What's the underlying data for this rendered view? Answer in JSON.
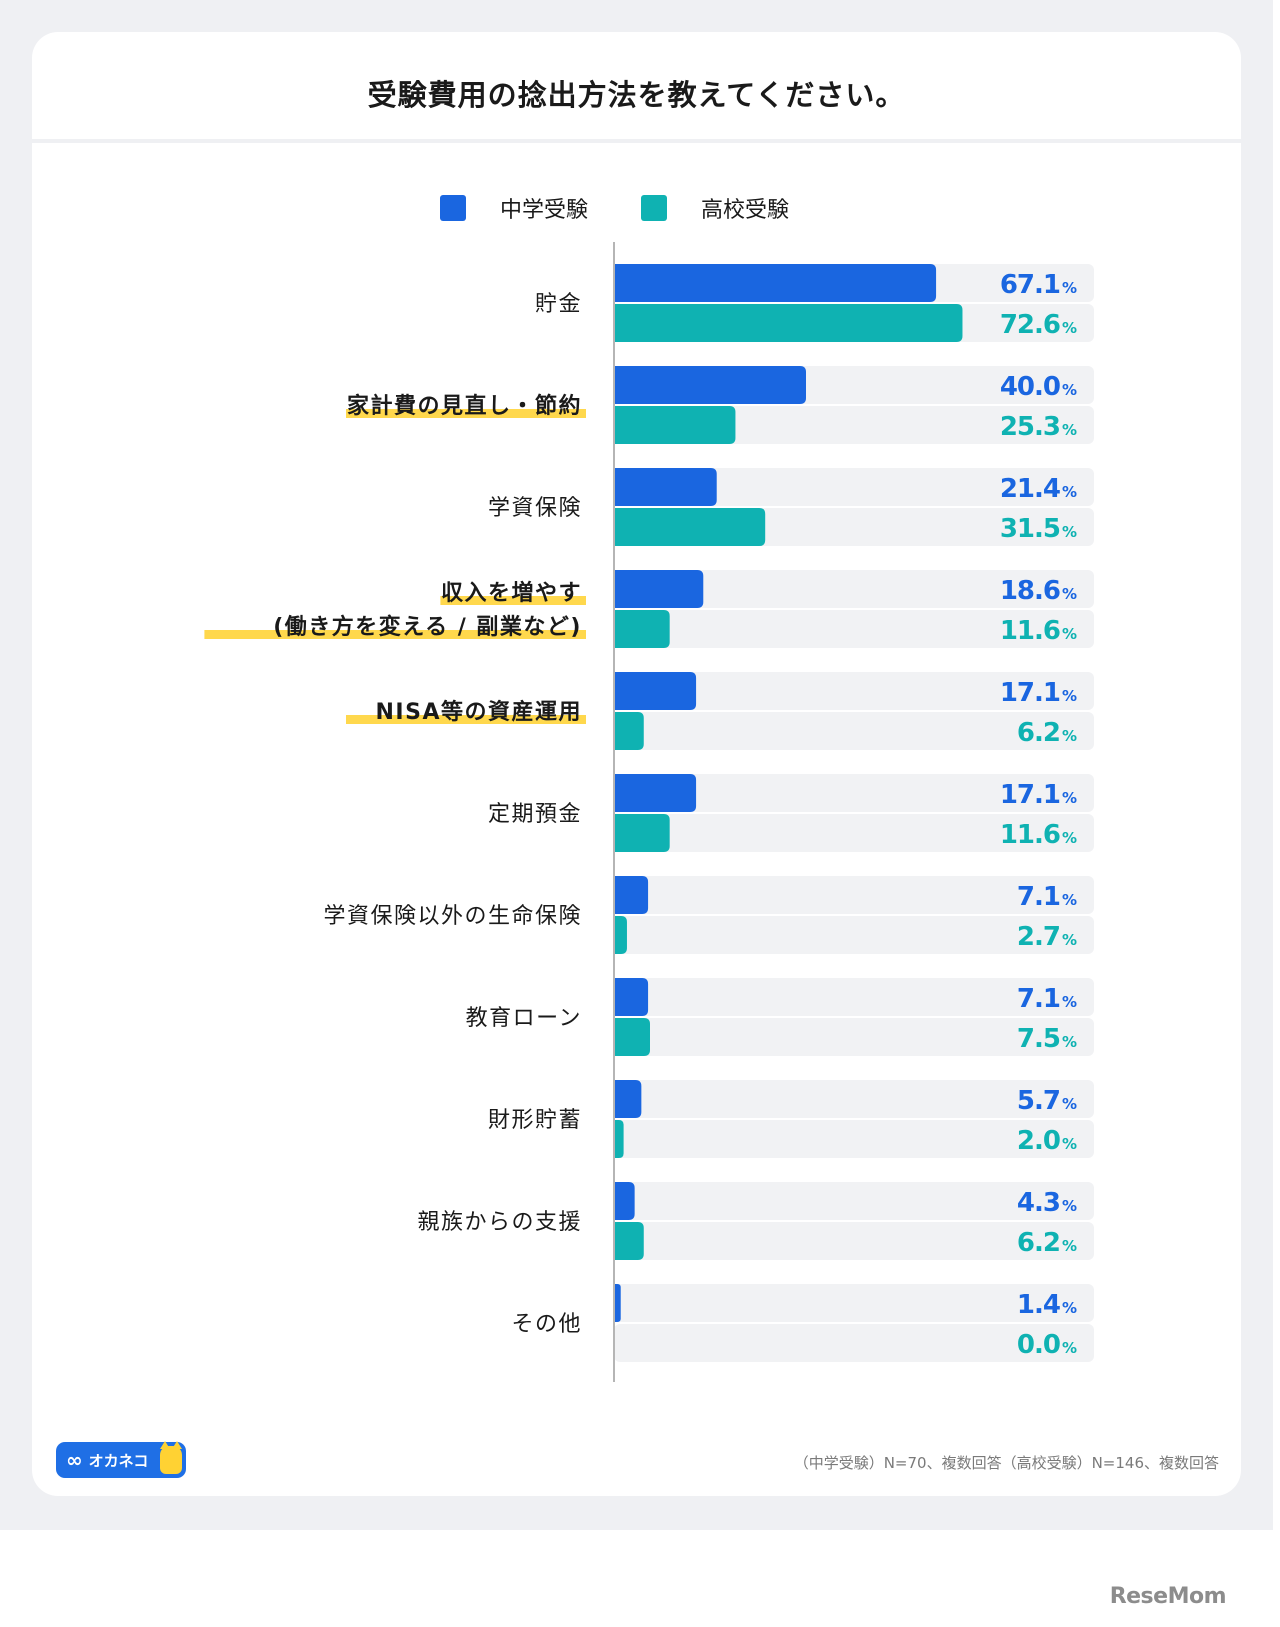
{
  "title": "受験費用の捻出方法を教えてください。",
  "chart_data": {
    "type": "bar",
    "orientation": "horizontal",
    "categories": [
      "貯金",
      "家計費の見直し・節約",
      "学資保険",
      "収入を増やす\n(働き方を変える / 副業など)",
      "NISA等の資産運用",
      "定期預金",
      "学資保険以外の生命保険",
      "教育ローン",
      "財形貯蓄",
      "親族からの支援",
      "その他"
    ],
    "highlighted": [
      false,
      true,
      false,
      true,
      true,
      false,
      false,
      false,
      false,
      false,
      false
    ],
    "series": [
      {
        "name": "中学受験",
        "color": "#1a66e0",
        "values": [
          67.1,
          40.0,
          21.4,
          18.6,
          17.1,
          17.1,
          7.1,
          7.1,
          5.7,
          4.3,
          1.4
        ]
      },
      {
        "name": "高校受験",
        "color": "#0fb2b2",
        "values": [
          72.6,
          25.3,
          31.5,
          11.6,
          6.2,
          11.6,
          2.7,
          7.5,
          2.0,
          6.2,
          0.0
        ]
      }
    ],
    "unit": "%",
    "xlim": [
      0,
      100
    ],
    "legend_position": "top",
    "grid": false
  },
  "colors": {
    "highlight": "#ffd84d",
    "track": "#f1f2f4"
  },
  "footnote": "（中学受験）N=70、複数回答（高校受験）N=146、複数回答",
  "logo": {
    "mark": "∞",
    "text": "オカネコ"
  },
  "watermark": "ReseMom"
}
